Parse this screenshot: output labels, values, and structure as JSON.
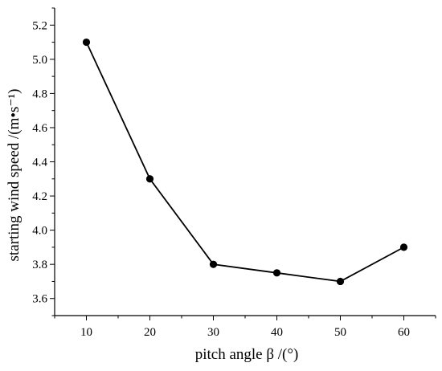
{
  "chart_data": {
    "type": "line",
    "title": "",
    "xlabel": "pitch angle β /(°)",
    "ylabel": "starting wind speed /(m•s⁻¹)",
    "x": [
      10,
      20,
      30,
      40,
      50,
      60
    ],
    "series": [
      {
        "values": [
          5.1,
          4.3,
          3.8,
          3.75,
          3.7,
          3.9
        ]
      }
    ],
    "xlim": [
      5,
      65
    ],
    "ylim": [
      3.5,
      5.3
    ],
    "xticks": [
      10,
      20,
      30,
      40,
      50,
      60
    ],
    "yticks": [
      3.6,
      3.8,
      4.0,
      4.2,
      4.4,
      4.6,
      4.8,
      5.0,
      5.2
    ],
    "ytick_labels": [
      "3.6",
      "3.8",
      "4.0",
      "4.2",
      "4.4",
      "4.6",
      "4.8",
      "5.0",
      "5.2"
    ],
    "grid": false,
    "legend": "none",
    "colors": {
      "line": "#000000",
      "marker": "#000000",
      "axis": "#000000"
    }
  }
}
